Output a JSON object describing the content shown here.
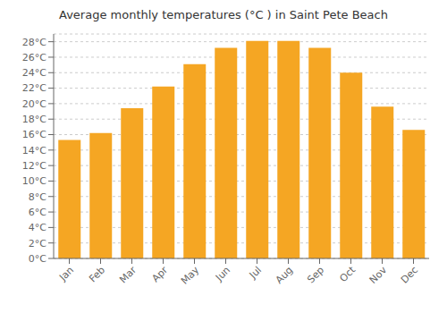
{
  "chart_data": {
    "type": "bar",
    "title": "Average monthly temperatures (°C ) in Saint Pete Beach",
    "categories": [
      "Jan",
      "Feb",
      "Mar",
      "Apr",
      "May",
      "Jun",
      "Jul",
      "Aug",
      "Sep",
      "Oct",
      "Nov",
      "Dec"
    ],
    "values": [
      15.3,
      16.2,
      19.4,
      22.2,
      25.1,
      27.2,
      28.1,
      28.1,
      27.2,
      24.0,
      19.6,
      16.6
    ],
    "color": "#F5A623",
    "ylim": [
      0,
      29
    ],
    "yticks": [
      {
        "value": 0,
        "label": "0°C"
      },
      {
        "value": 2,
        "label": "2°C"
      },
      {
        "value": 4,
        "label": "4°C"
      },
      {
        "value": 6,
        "label": "6°C"
      },
      {
        "value": 8,
        "label": "8°C"
      },
      {
        "value": 10,
        "label": "10°C"
      },
      {
        "value": 12,
        "label": "12°C"
      },
      {
        "value": 14,
        "label": "14°C"
      },
      {
        "value": 16,
        "label": "16°C"
      },
      {
        "value": 18,
        "label": "18°C"
      },
      {
        "value": 20,
        "label": "20°C"
      },
      {
        "value": 22,
        "label": "22°C"
      },
      {
        "value": 24,
        "label": "24°C"
      },
      {
        "value": 26,
        "label": "26°C"
      },
      {
        "value": 28,
        "label": "28°C"
      }
    ],
    "grid": true
  }
}
